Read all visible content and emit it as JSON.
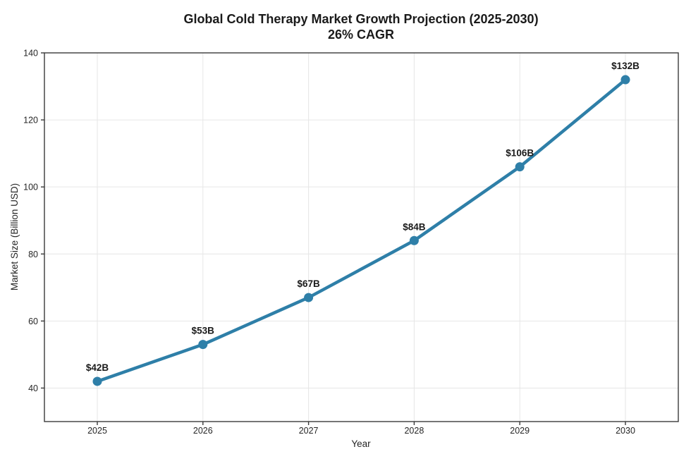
{
  "chart_data": {
    "type": "line",
    "title": "Global Cold Therapy Market Growth Projection (2025-2030)",
    "subtitle": "26% CAGR",
    "xlabel": "Year",
    "ylabel": "Market Size (Billion USD)",
    "x": [
      "2025",
      "2026",
      "2027",
      "2028",
      "2029",
      "2030"
    ],
    "values": [
      42,
      53,
      67,
      84,
      106,
      132
    ],
    "point_labels": [
      "$42B",
      "$53B",
      "$67B",
      "$84B",
      "$106B",
      "$132B"
    ],
    "yticks": [
      40,
      60,
      80,
      100,
      120,
      140
    ],
    "ylim": [
      30,
      140
    ],
    "grid": true,
    "legend": "none",
    "colors": {
      "line": "#2e7fa8",
      "marker": "#2e7fa8",
      "text": "#1a1a1a",
      "tick_text": "#262626",
      "grid": "#e6e6e6",
      "spine": "#3a3a3a",
      "background": "#ffffff"
    }
  }
}
